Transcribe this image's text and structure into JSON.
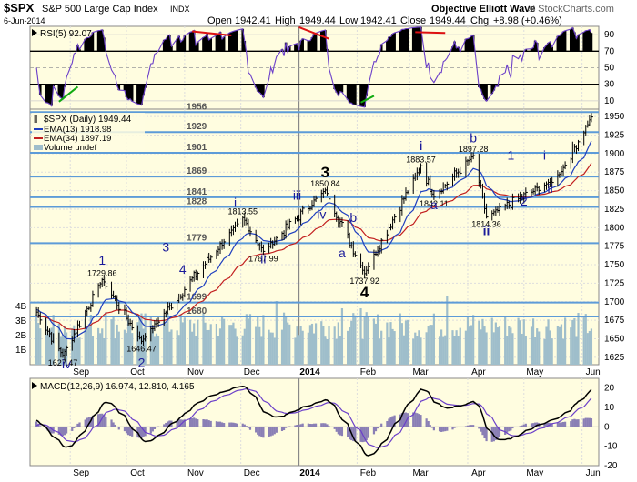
{
  "header": {
    "symbol": "$SPX",
    "name": "S&P 500 Large Cap Index",
    "exchange": "INDX",
    "date": "6-Jun-2014",
    "open_label": "Open",
    "open": "1942.41",
    "high_label": "High",
    "high": "1949.44",
    "low_label": "Low",
    "low": "1942.41",
    "close_label": "Close",
    "close": "1949.44",
    "chg_label": "Chg",
    "chg": "+8.98 (+0.46%)",
    "source": "Objective Elliott Wave",
    "watermark": "© StockCharts.com"
  },
  "colors": {
    "panel_bg": "#fffde0",
    "price": "#000000",
    "ema13": "#1f3fbf",
    "ema34": "#c21f1f",
    "volume": "#9fbecb",
    "level": "#5d9bd8",
    "rsi": "#6b3fc9",
    "macd": "#000000",
    "signal": "#6b3fc9",
    "wave_blue": "#1a1a9a",
    "wave_purple": "#8b1a8b",
    "wave_green": "#2a7a7a"
  },
  "chart_data": [
    {
      "type": "line",
      "panel": "RSI",
      "legend": "RSI(5) 92.07",
      "series": [
        {
          "name": "RSI(5)",
          "last": 92.07
        }
      ],
      "ylim": [
        0,
        100
      ],
      "y_ticks": [
        10,
        30,
        50,
        70,
        90
      ]
    },
    {
      "type": "candlestick",
      "panel": "price",
      "legend_title": "$SPX (Daily) 1949.44",
      "legend": [
        "EMA(13) 1918.98",
        "EMA(34) 1897.19",
        "Volume undef"
      ],
      "series": [
        {
          "name": "EMA(13)",
          "last": 1918.98
        },
        {
          "name": "EMA(34)",
          "last": 1897.19
        }
      ],
      "ylim": [
        1615,
        1960
      ],
      "y_ticks": [
        1625,
        1650,
        1675,
        1700,
        1725,
        1750,
        1775,
        1800,
        1825,
        1850,
        1875,
        1900,
        1925,
        1950
      ],
      "volume_ticks": [
        "1B",
        "2B",
        "3B",
        "4B"
      ],
      "x_ticks": [
        "Sep",
        "Oct",
        "Nov",
        "Dec",
        "2014",
        "Feb",
        "Mar",
        "Apr",
        "May",
        "Jun"
      ],
      "pivots": [
        {
          "date": "2013-08-28",
          "price": 1627.47,
          "label": "1627.47"
        },
        {
          "date": "2013-09-18",
          "price": 1729.86,
          "label": "1729.86"
        },
        {
          "date": "2013-10-09",
          "price": 1646.47,
          "label": "1646.47"
        },
        {
          "date": "2013-12-02",
          "price": 1813.55,
          "label": "1813.55"
        },
        {
          "date": "2013-12-13",
          "price": 1767.99,
          "label": "1767.99"
        },
        {
          "date": "2014-01-15",
          "price": 1850.84,
          "label": "1850.84"
        },
        {
          "date": "2014-02-05",
          "price": 1737.92,
          "label": "1737.92"
        },
        {
          "date": "2014-03-07",
          "price": 1883.57,
          "label": "1883.57"
        },
        {
          "date": "2014-03-14",
          "price": 1842.11,
          "label": "1842.11"
        },
        {
          "date": "2014-04-04",
          "price": 1897.28,
          "label": "1897.28"
        },
        {
          "date": "2014-04-11",
          "price": 1814.36,
          "label": "1814.36"
        }
      ],
      "levels": [
        1680,
        1699,
        1779,
        1828,
        1841,
        1869,
        1901,
        1929,
        1956
      ],
      "waves": [
        {
          "label": "iv",
          "date": "2013-08-30",
          "price": 1610
        },
        {
          "label": "1",
          "date": "2013-09-18",
          "price": 1750
        },
        {
          "label": "2",
          "date": "2013-10-09",
          "price": 1612
        },
        {
          "label": "3",
          "date": "2013-10-22",
          "price": 1768
        },
        {
          "label": "4",
          "date": "2013-10-31",
          "price": 1738
        },
        {
          "label": "i",
          "date": "2013-11-28",
          "price": 1828
        },
        {
          "label": "ii",
          "date": "2013-12-13",
          "price": 1752
        },
        {
          "label": "iii",
          "date": "2013-12-31",
          "price": 1838
        },
        {
          "label": "iv",
          "date": "2014-01-13",
          "price": 1812
        },
        {
          "label": "3",
          "date": "2014-01-15",
          "price": 1868
        },
        {
          "label": "a",
          "date": "2014-01-24",
          "price": 1760
        },
        {
          "label": "b",
          "date": "2014-01-30",
          "price": 1808
        },
        {
          "label": "4",
          "date": "2014-02-05",
          "price": 1706
        },
        {
          "label": "i",
          "date": "2014-03-07",
          "price": 1905
        },
        {
          "label": "a",
          "date": "2014-03-14",
          "price": 1825
        },
        {
          "label": "b",
          "date": "2014-04-04",
          "price": 1915
        },
        {
          "label": "ii",
          "date": "2014-04-11",
          "price": 1790
        },
        {
          "label": "1",
          "date": "2014-04-24",
          "price": 1892
        },
        {
          "label": "2",
          "date": "2014-05-01",
          "price": 1830
        },
        {
          "label": "i",
          "date": "2014-05-12",
          "price": 1892
        },
        {
          "label": "ii",
          "date": "2014-05-15",
          "price": 1847
        }
      ]
    },
    {
      "type": "line",
      "panel": "MACD",
      "legend": "MACD(12,26,9) 16.974, 12.810, 4.165",
      "series": [
        {
          "name": "MACD(12,26,9)",
          "last": 16.974
        },
        {
          "name": "Signal",
          "last": 12.81
        },
        {
          "name": "Histogram",
          "last": 4.165
        }
      ],
      "ylim": [
        -20,
        25
      ],
      "y_ticks": [
        -20,
        -10,
        0,
        10,
        20
      ],
      "x_ticks": [
        "Sep",
        "Oct",
        "Nov",
        "Dec",
        "2014",
        "Feb",
        "Mar",
        "Apr",
        "May",
        "Jun"
      ]
    }
  ]
}
